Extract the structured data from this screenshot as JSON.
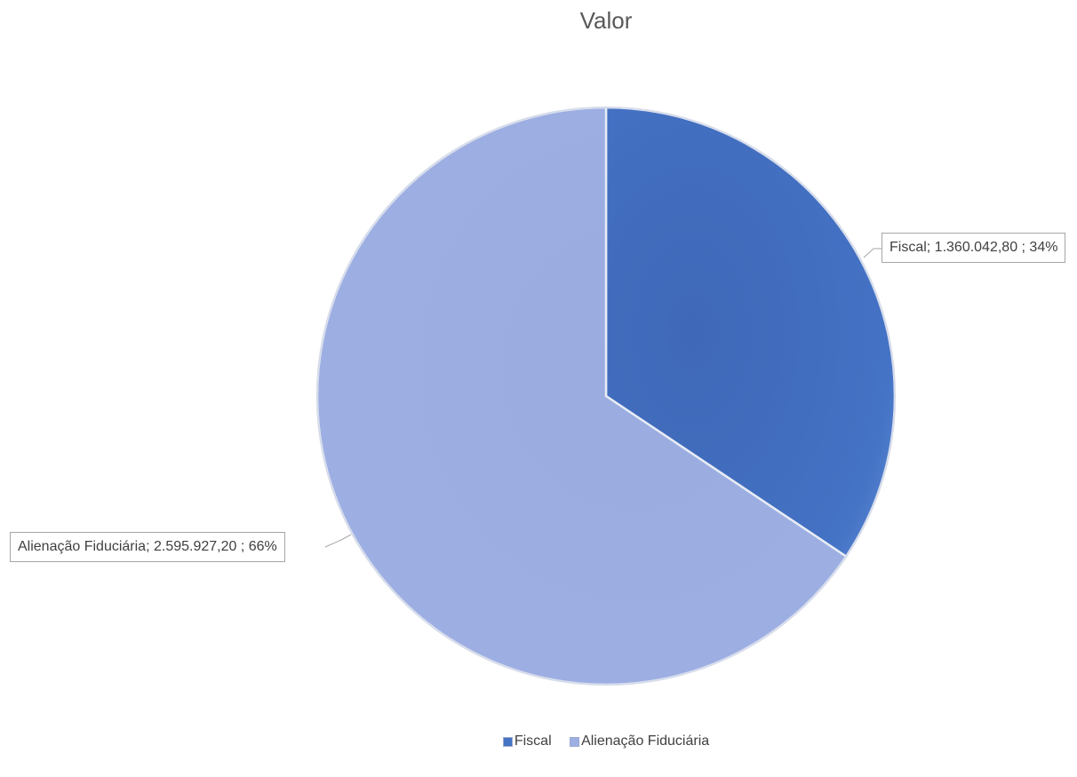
{
  "chart_data": {
    "type": "pie",
    "title": "Valor",
    "categories": [
      "Fiscal",
      "Alienação Fiduciária"
    ],
    "values": [
      1360042.8,
      2595927.2
    ],
    "percents": [
      34,
      66
    ],
    "data_labels": [
      "Fiscal;  1.360.042,80 ; 34%",
      "Alienação Fiduciária;  2.595.927,20 ; 66%"
    ],
    "colors": [
      "#4472c4",
      "#9dafe3"
    ],
    "legend": {
      "position": "bottom",
      "entries": [
        "Fiscal",
        "Alienação Fiduciária"
      ]
    }
  }
}
